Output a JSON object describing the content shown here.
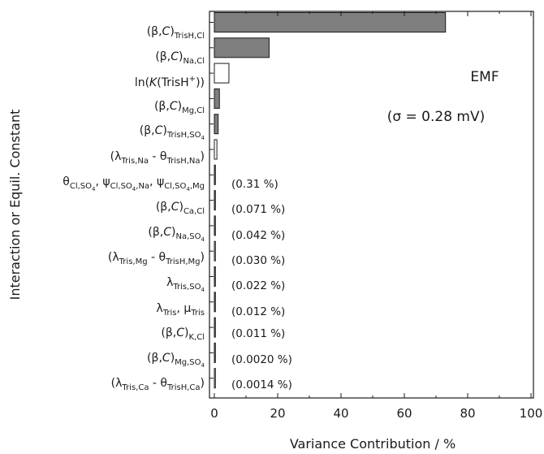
{
  "chart_data": {
    "type": "bar",
    "orientation": "horizontal",
    "categories": [
      "(β,C)TrisH,Cl",
      "(β,C)Na,Cl",
      "ln(K(TrisH+))",
      "(β,C)Mg,Cl",
      "(β,C)TrisH,SO4",
      "(λTris,Na - θTrisH,Na)",
      "θCl,SO4, ψCl,SO4,Na, ψCl,SO4,Mg",
      "(β,C)Ca,Cl",
      "(β,C)Na,SO4",
      "(λTris,Mg - θTrisH,Mg)",
      "λTris,SO4",
      "λTris, μTris",
      "(β,C)K,Cl",
      "(β,C)Mg,SO4",
      "(λTris,Ca - θTrisH,Ca)"
    ],
    "values": [
      73,
      17.3,
      4.6,
      1.6,
      1.2,
      0.8,
      0.31,
      0.071,
      0.042,
      0.03,
      0.022,
      0.012,
      0.011,
      0.002,
      0.0014
    ],
    "bar_fill": [
      "gray",
      "gray",
      "white",
      "gray",
      "gray",
      "white",
      "gray",
      "gray",
      "gray",
      "white",
      "gray",
      "gray",
      "gray",
      "gray",
      "white"
    ],
    "value_labels": [
      "",
      "",
      "",
      "",
      "",
      "",
      "(0.31 %)",
      "(0.071 %)",
      "(0.042 %)",
      "(0.030 %)",
      "(0.022 %)",
      "(0.012 %)",
      "(0.011 %)",
      "(0.0020 %)",
      "(0.0014 %)"
    ],
    "xlim": [
      0,
      100
    ],
    "xticks": [
      0,
      20,
      40,
      60,
      80,
      100
    ],
    "xlabel": "Variance Contribution / %",
    "ylabel": "Interaction or Equil. Constant",
    "annotations": [
      "EMF",
      "(σ = 0.28 mV)"
    ],
    "grid": false,
    "legend": "none",
    "colors": {
      "gray_bar": "#7f7f7f",
      "white_bar": "#ffffff",
      "outline": "#1a1a1a"
    }
  }
}
